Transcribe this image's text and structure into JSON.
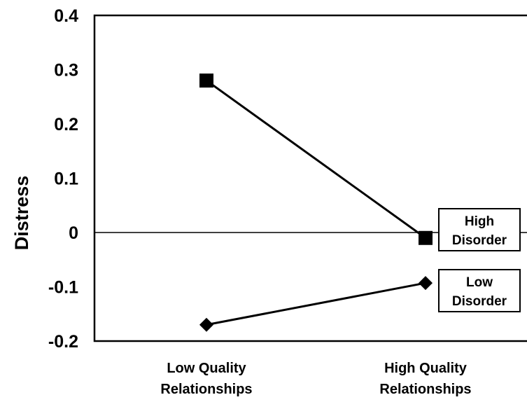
{
  "chart_data": {
    "type": "line",
    "title": "",
    "xlabel": "",
    "ylabel": "Distress",
    "ylim": [
      -0.2,
      0.4
    ],
    "yticks": [
      {
        "value": 0.4,
        "label": "0.4"
      },
      {
        "value": 0.3,
        "label": "0.3"
      },
      {
        "value": 0.2,
        "label": "0.2"
      },
      {
        "value": 0.1,
        "label": "0.1"
      },
      {
        "value": 0,
        "label": "0"
      },
      {
        "value": -0.1,
        "label": "-0.1"
      },
      {
        "value": -0.2,
        "label": "-0.2"
      }
    ],
    "categories": [
      {
        "line1": "Low Quality",
        "line2": "Relationships"
      },
      {
        "line1": "High Quality",
        "line2": "Relationships"
      }
    ],
    "series": [
      {
        "name_line1": "High",
        "name_line2": "Disorder",
        "marker": "square",
        "values": [
          0.28,
          -0.01
        ]
      },
      {
        "name_line1": "Low",
        "name_line2": "Disorder",
        "marker": "diamond",
        "values": [
          -0.17,
          -0.093
        ]
      }
    ],
    "zero_line": true,
    "grid": false,
    "legend": "inline-right",
    "colors": {
      "ink": "#000000",
      "background": "#ffffff"
    }
  }
}
